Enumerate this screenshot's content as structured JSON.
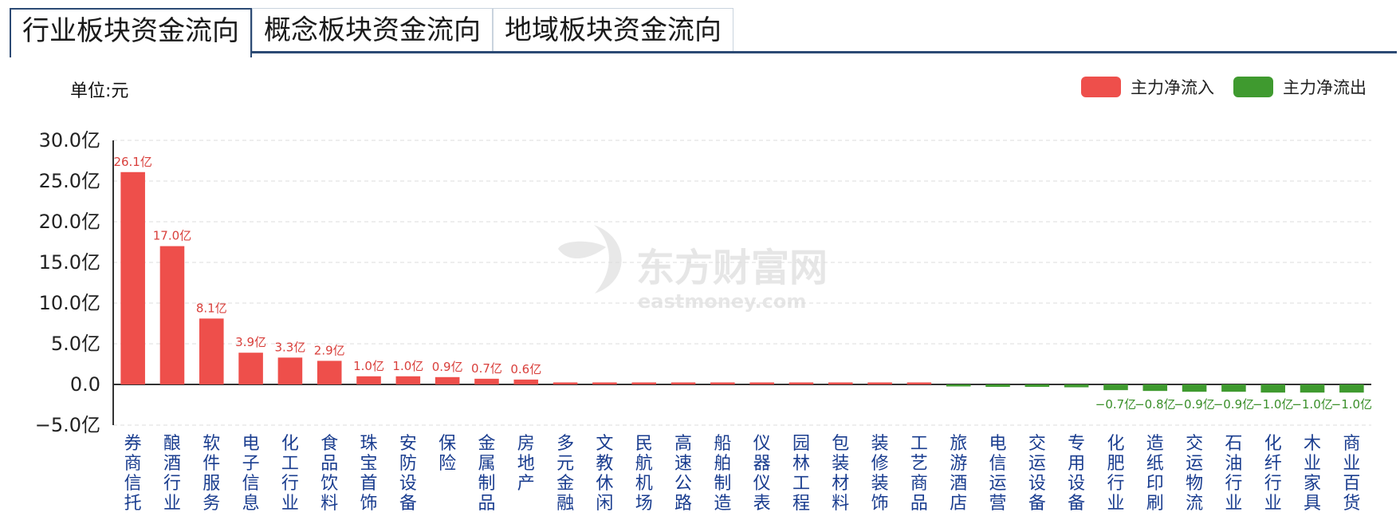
{
  "tabs": [
    {
      "label": "行业板块资金流向",
      "active": true
    },
    {
      "label": "概念板块资金流向",
      "active": false
    },
    {
      "label": "地域板块资金流向",
      "active": false
    }
  ],
  "unit_label": "单位:元",
  "legend": [
    {
      "label": "主力净流入",
      "color": "#ee4f4b"
    },
    {
      "label": "主力净流出",
      "color": "#3f9a2f"
    }
  ],
  "watermark": {
    "brand": "东方财富网",
    "domain": "eastmoney.com"
  },
  "chart_data": {
    "type": "bar",
    "title": "",
    "xlabel": "",
    "ylabel": "",
    "ylim": [
      -5,
      30
    ],
    "yticks": [
      "30.0亿",
      "25.0亿",
      "20.0亿",
      "15.0亿",
      "10.0亿",
      "5.0亿",
      "0.0",
      "−5.0亿"
    ],
    "grid": true,
    "positive_color": "#ee4f4b",
    "negative_color": "#3f9a2f",
    "categories": [
      "券商信托",
      "酿酒行业",
      "软件服务",
      "电子信息",
      "化工行业",
      "食品饮料",
      "珠宝首饰",
      "安防设备",
      "保险",
      "金属制品",
      "房地产",
      "多元金融",
      "文教休闲",
      "民航机场",
      "高速公路",
      "船舶制造",
      "仪器仪表",
      "园林工程",
      "包装材料",
      "装修装饰",
      "工艺商品",
      "旅游酒店",
      "电信运营",
      "交运设备",
      "专用设备",
      "化肥行业",
      "造纸印刷",
      "交运物流",
      "石油行业",
      "化纤行业",
      "木业家具",
      "商业百货"
    ],
    "values": [
      26.1,
      17.0,
      8.1,
      3.9,
      3.3,
      2.9,
      1.0,
      1.0,
      0.9,
      0.7,
      0.6,
      0.2,
      0.1,
      0.1,
      0.05,
      0.05,
      0.03,
      0.02,
      0.01,
      0.01,
      0.0,
      -0.1,
      -0.3,
      -0.3,
      -0.35,
      -0.7,
      -0.8,
      -0.9,
      -0.9,
      -1.0,
      -1.0,
      -1.0
    ],
    "data_labels": [
      "26.1亿",
      "17.0亿",
      "8.1亿",
      "3.9亿",
      "3.3亿",
      "2.9亿",
      "1.0亿",
      "1.0亿",
      "0.9亿",
      "0.7亿",
      "0.6亿",
      "",
      "",
      "",
      "",
      "",
      "",
      "",
      "",
      "",
      "",
      "",
      "",
      "",
      "",
      "−0.7亿",
      "−0.8亿",
      "−0.9亿",
      "−0.9亿",
      "−1.0亿",
      "−1.0亿",
      "−1.0亿"
    ]
  }
}
